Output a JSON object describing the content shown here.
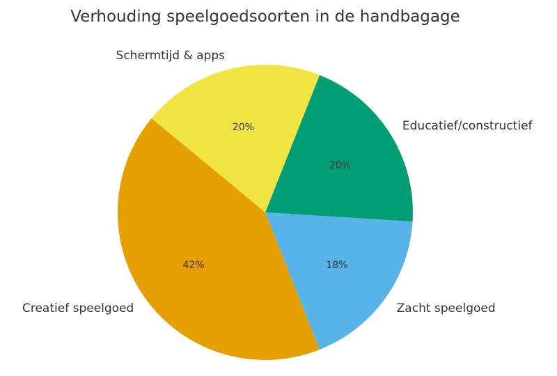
{
  "chart_data": {
    "type": "pie",
    "title": "Verhouding speelgoedsoorten in de handbagage",
    "categories": [
      "Educatief/constructief",
      "Zacht speelgoed",
      "Creatief speelgoed",
      "Schermtijd & apps"
    ],
    "values": [
      20,
      18,
      42,
      20
    ],
    "labels_pct": [
      "20%",
      "18%",
      "42%",
      "20%"
    ],
    "colors": [
      "#029E73",
      "#56B4E9",
      "#E69F00",
      "#F0E442"
    ],
    "center": [
      381,
      305
    ],
    "radius": 212,
    "start_angle_deg": -68.4,
    "direction": "clockwise",
    "legend": "none (labels outside slices)"
  }
}
